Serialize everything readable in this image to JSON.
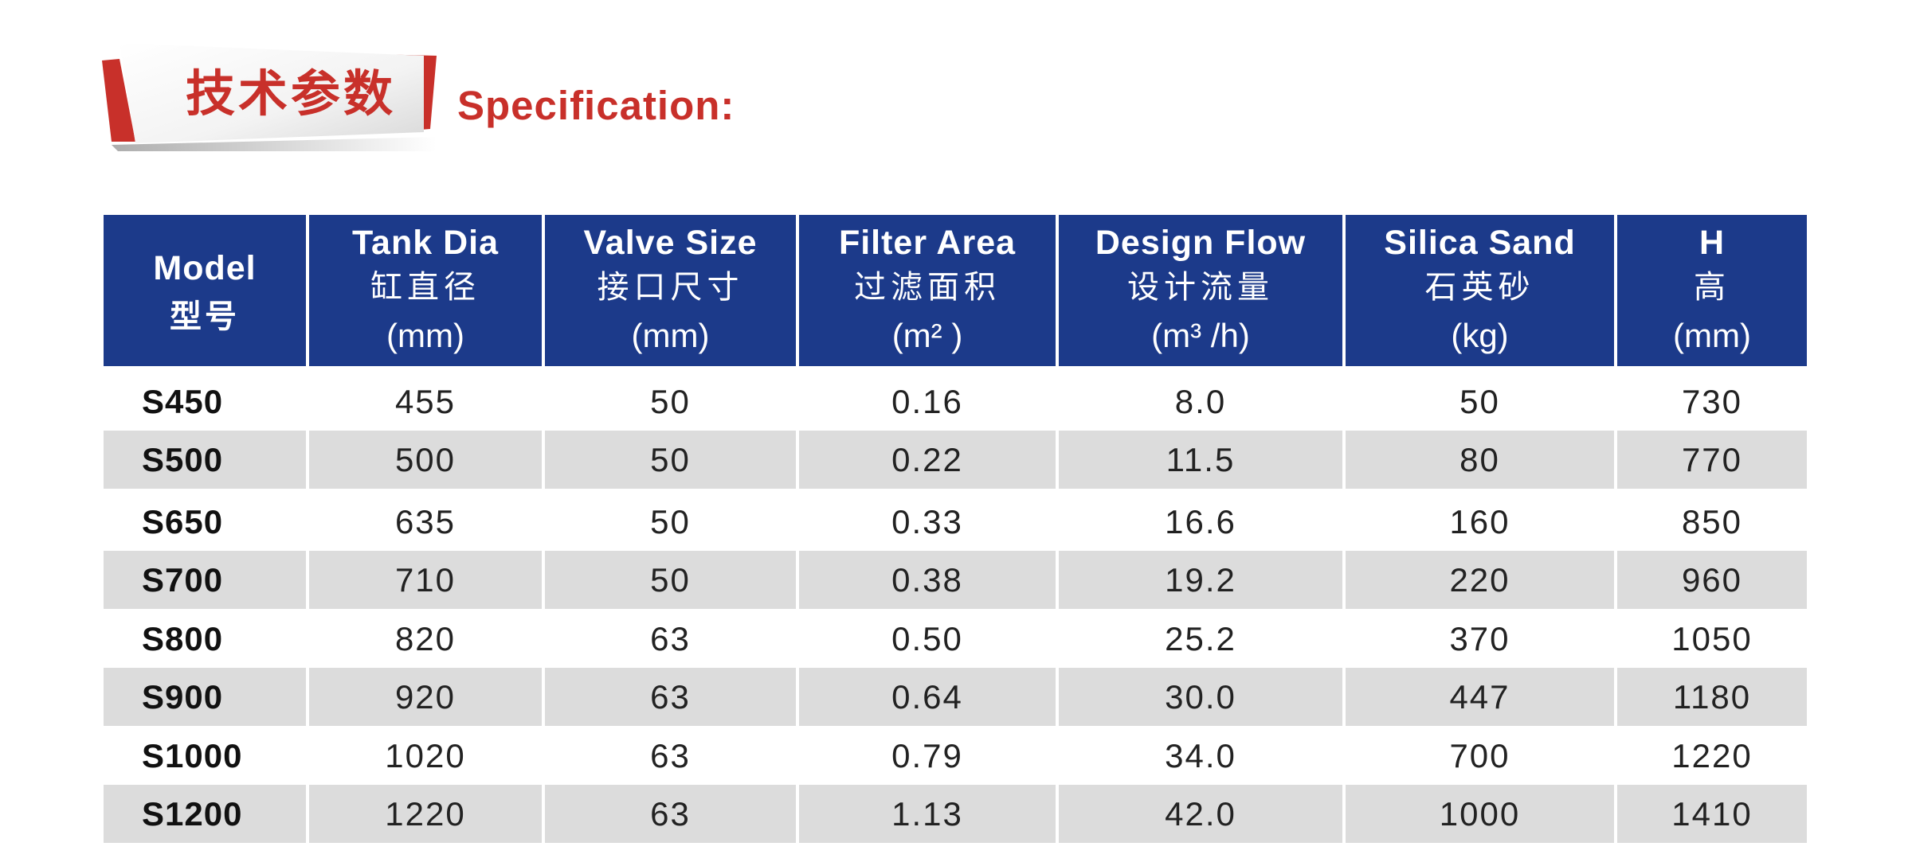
{
  "heading": {
    "title_cn": "技术参数",
    "title_en": "Specification:",
    "accent_color": "#c8302a"
  },
  "table": {
    "header_color": "#1c3a8a",
    "stripe_color": "#dcdcdc",
    "headers": [
      {
        "en": "Model",
        "cn": "型号",
        "unit": ""
      },
      {
        "en": "Tank Dia",
        "cn": "缸直径",
        "unit": "(mm)"
      },
      {
        "en": "Valve Size",
        "cn": "接口尺寸",
        "unit": "(mm)"
      },
      {
        "en": "Filter Area",
        "cn": "过滤面积",
        "unit": "(m² )"
      },
      {
        "en": "Design Flow",
        "cn": "设计流量",
        "unit": "(m³ /h)"
      },
      {
        "en": "Silica Sand",
        "cn": "石英砂",
        "unit": "(kg)"
      },
      {
        "en": "H",
        "cn": "高",
        "unit": "(mm)"
      }
    ],
    "rows": [
      [
        "S450",
        "455",
        "50",
        "0.16",
        "8.0",
        "50",
        "730"
      ],
      [
        "S500",
        "500",
        "50",
        "0.22",
        "11.5",
        "80",
        "770"
      ],
      [
        "S650",
        "635",
        "50",
        "0.33",
        "16.6",
        "160",
        "850"
      ],
      [
        "S700",
        "710",
        "50",
        "0.38",
        "19.2",
        "220",
        "960"
      ],
      [
        "S800",
        "820",
        "63",
        "0.50",
        "25.2",
        "370",
        "1050"
      ],
      [
        "S900",
        "920",
        "63",
        "0.64",
        "30.0",
        "447",
        "1180"
      ],
      [
        "S1000",
        "1020",
        "63",
        "0.79",
        "34.0",
        "700",
        "1220"
      ],
      [
        "S1200",
        "1220",
        "63",
        "1.13",
        "42.0",
        "1000",
        "1410"
      ]
    ]
  }
}
